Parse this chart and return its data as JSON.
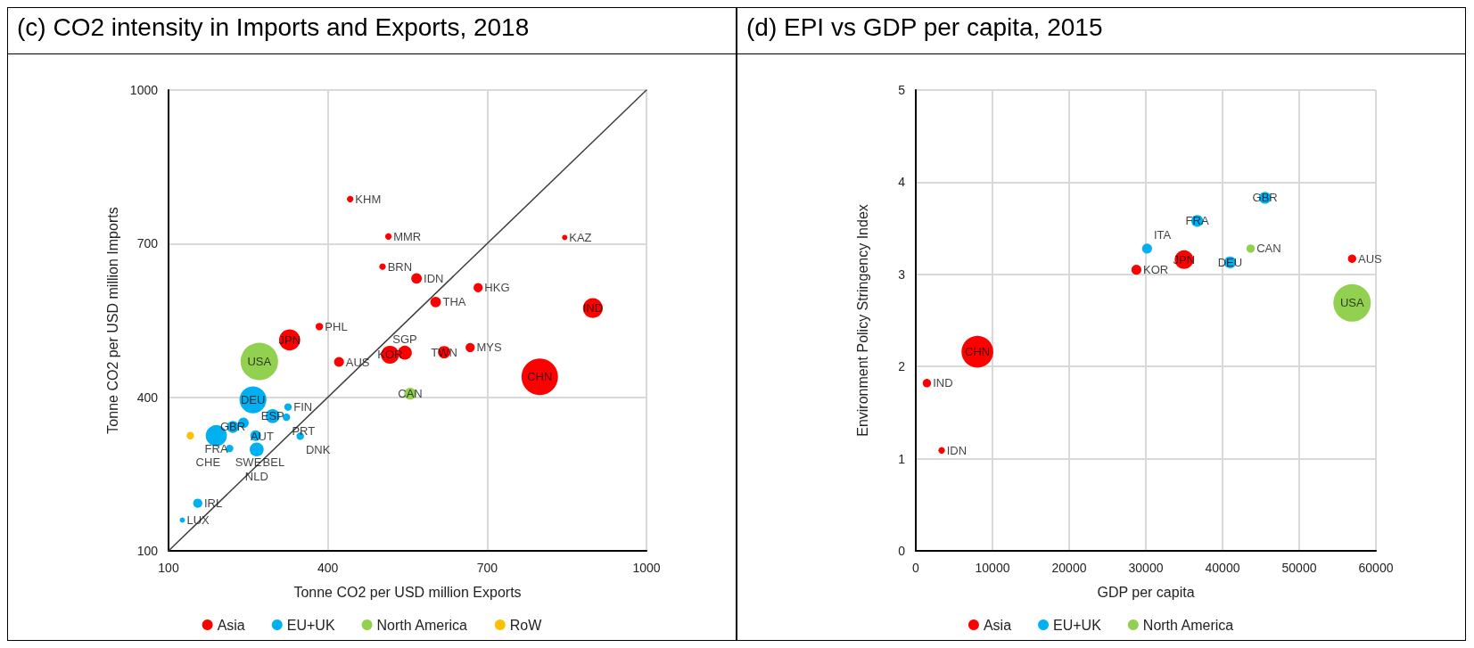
{
  "chart_data": [
    {
      "type": "bubble",
      "title": "(c) CO2 intensity in Imports and Exports, 2018",
      "xlabel": "Tonne CO2 per USD million Exports",
      "ylabel": "Tonne CO2 per USD million Imports",
      "xlim": [
        100,
        1000
      ],
      "ylim": [
        100,
        1000
      ],
      "xticks": [
        100,
        400,
        700,
        1000
      ],
      "yticks": [
        100,
        400,
        700,
        1000
      ],
      "grid": true,
      "legend": "bottom",
      "marker": "circle",
      "series": [
        {
          "name": "Asia",
          "color": "#ff0000",
          "x": [
            442,
            514,
            503,
            567,
            683,
            603,
            384,
            328,
            421,
            517,
            545,
            619,
            668,
            799,
            899,
            846
          ],
          "values": [
            787,
            714,
            655,
            632,
            614,
            586,
            538,
            512,
            469,
            483,
            487,
            488,
            497,
            440,
            574,
            712
          ],
          "sizes": [
            0.03,
            0.03,
            0.03,
            0.08,
            0.06,
            0.08,
            0.04,
            0.32,
            0.07,
            0.23,
            0.14,
            0.11,
            0.06,
            0.95,
            0.28,
            0.02
          ]
        },
        {
          "name": "EU+UK",
          "color": "#00b0f0",
          "x": [
            259,
            325,
            296,
            322,
            241,
            221,
            190,
            264,
            215,
            266,
            348,
            155,
            126
          ],
          "values": [
            395,
            381,
            363,
            361,
            350,
            342,
            325,
            325,
            300,
            298,
            324,
            193,
            160
          ],
          "sizes": [
            0.52,
            0.04,
            0.14,
            0.04,
            0.08,
            0.1,
            0.32,
            0.08,
            0.04,
            0.14,
            0.04,
            0.06,
            0.02
          ]
        },
        {
          "name": "North America",
          "color": "#92d050",
          "x": [
            271,
            555
          ],
          "values": [
            470,
            407
          ],
          "sizes": [
            1,
            0.1
          ]
        },
        {
          "name": "RoW",
          "color": "#ffc000",
          "x": [
            141
          ],
          "values": [
            325
          ],
          "sizes": [
            0.04
          ]
        },
        {
          "type": "line",
          "color": "#404040",
          "x": [
            100,
            1000
          ],
          "values": [
            100,
            1000
          ],
          "marker": "none"
        }
      ],
      "annotations": [
        {
          "text": "KHM",
          "x": 442,
          "y": 787
        },
        {
          "text": "MMR",
          "x": 514,
          "y": 714
        },
        {
          "text": "BRN",
          "x": 503,
          "y": 655
        },
        {
          "text": "IDN",
          "x": 567,
          "y": 632
        },
        {
          "text": "HKG",
          "x": 683,
          "y": 614
        },
        {
          "text": "THA",
          "x": 603,
          "y": 586
        },
        {
          "text": "PHL",
          "x": 384,
          "y": 538
        },
        {
          "text": "JPN",
          "x": 328,
          "y": 512
        },
        {
          "text": "AUS",
          "x": 421,
          "y": 469
        },
        {
          "text": "KOR",
          "x": 517,
          "y": 483
        },
        {
          "text": "SGP",
          "x": 545,
          "y": 487
        },
        {
          "text": "TWN",
          "x": 619,
          "y": 488
        },
        {
          "text": "MYS",
          "x": 668,
          "y": 497
        },
        {
          "text": "CHN",
          "x": 799,
          "y": 440
        },
        {
          "text": "IND",
          "x": 899,
          "y": 574
        },
        {
          "text": "KAZ",
          "x": 846,
          "y": 712
        },
        {
          "text": "DEU",
          "x": 259,
          "y": 395
        },
        {
          "text": "FIN",
          "x": 325,
          "y": 381
        },
        {
          "text": "ESP",
          "x": 296,
          "y": 363
        },
        {
          "text": "PRT",
          "x": 322,
          "y": 361
        },
        {
          "text": "AUT",
          "x": 241,
          "y": 350
        },
        {
          "text": "GBR",
          "x": 221,
          "y": 342
        },
        {
          "text": "FRA",
          "x": 190,
          "y": 325
        },
        {
          "text": "BEL",
          "x": 264,
          "y": 325
        },
        {
          "text": "SWE",
          "x": 215,
          "y": 300
        },
        {
          "text": "NLD",
          "x": 266,
          "y": 298
        },
        {
          "text": "DNK",
          "x": 348,
          "y": 324
        },
        {
          "text": "IRL",
          "x": 155,
          "y": 193
        },
        {
          "text": "LUX",
          "x": 126,
          "y": 160
        },
        {
          "text": "USA",
          "x": 271,
          "y": 470
        },
        {
          "text": "CAN",
          "x": 555,
          "y": 407
        },
        {
          "text": "CHE",
          "x": 141,
          "y": 325
        }
      ]
    },
    {
      "type": "bubble",
      "title": "(d) EPI vs GDP per capita, 2015",
      "xlabel": "GDP per capita",
      "ylabel": "Environment Policy Stringency Index",
      "xlim": [
        0,
        60000
      ],
      "ylim": [
        0,
        5
      ],
      "xticks": [
        0,
        10000,
        20000,
        30000,
        40000,
        50000,
        60000
      ],
      "yticks": [
        0,
        1,
        2,
        3,
        4,
        5
      ],
      "grid": true,
      "legend": "bottom",
      "marker": "circle",
      "series": [
        {
          "name": "Asia",
          "color": "#ff0000",
          "x": [
            34982,
            28768,
            56893,
            8036,
            1446,
            3375
          ],
          "values": [
            3.16,
            3.05,
            3.17,
            2.16,
            1.82,
            1.09
          ],
          "sizes": [
            0.25,
            0.07,
            0.05,
            0.72,
            0.05,
            0.03
          ]
        },
        {
          "name": "EU+UK",
          "color": "#00b0f0",
          "x": [
            45536,
            36696,
            30160,
            40982
          ],
          "values": [
            3.83,
            3.58,
            3.28,
            3.13
          ],
          "sizes": [
            0.1,
            0.1,
            0.07,
            0.1
          ]
        },
        {
          "name": "North America",
          "color": "#92d050",
          "x": [
            43660,
            56893
          ],
          "values": [
            3.28,
            2.69
          ],
          "sizes": [
            0.05,
            1
          ]
        }
      ],
      "annotations": [
        {
          "text": "JPN",
          "x": 34982,
          "y": 3.16
        },
        {
          "text": "KOR",
          "x": 28768,
          "y": 3.05
        },
        {
          "text": "AUS",
          "x": 56893,
          "y": 3.17
        },
        {
          "text": "CHN",
          "x": 8036,
          "y": 2.16
        },
        {
          "text": "IND",
          "x": 1446,
          "y": 1.82
        },
        {
          "text": "IDN",
          "x": 3375,
          "y": 1.09
        },
        {
          "text": "GBR",
          "x": 45536,
          "y": 3.83
        },
        {
          "text": "FRA",
          "x": 36696,
          "y": 3.58
        },
        {
          "text": "ITA",
          "x": 30160,
          "y": 3.28
        },
        {
          "text": "DEU",
          "x": 40982,
          "y": 3.13
        },
        {
          "text": "CAN",
          "x": 43660,
          "y": 3.28
        },
        {
          "text": "USA",
          "x": 56893,
          "y": 2.69
        }
      ]
    }
  ]
}
